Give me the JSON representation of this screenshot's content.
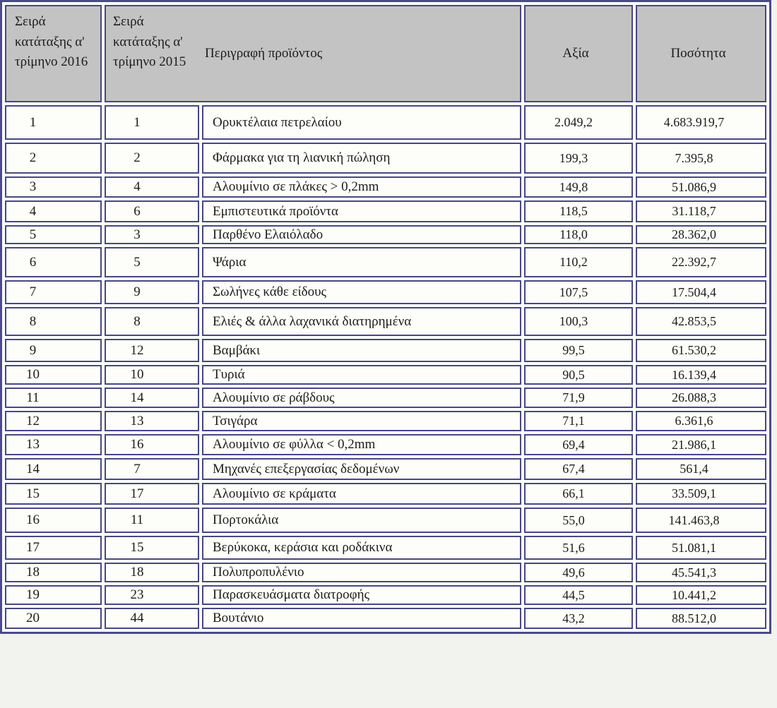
{
  "table": {
    "headers": {
      "rank_2016": "Σειρά κατάταξης α' τρίμηνο 2016",
      "rank_2015": "Σειρά κατάταξης α' τρίμηνο 2015",
      "product": "Περιγραφή προϊόντος",
      "value": "Αξία",
      "quantity": "Ποσότητα"
    },
    "colors": {
      "border": "#474783",
      "header_background": "#c3c3c3",
      "cell_background": "#fdfdf9"
    },
    "rows": [
      {
        "rank_2016": "1",
        "rank_2015": "1",
        "product": "Ορυκτέλαια πετρελαίου",
        "value": "2.049,2",
        "quantity": "4.683.919,7"
      },
      {
        "rank_2016": "2",
        "rank_2015": "2",
        "product": "Φάρμακα για τη λιανική πώληση",
        "value": "199,3",
        "quantity": "7.395,8"
      },
      {
        "rank_2016": "3",
        "rank_2015": "4",
        "product": "Αλουμίνιο σε πλάκες > 0,2mm",
        "value": "149,8",
        "quantity": "51.086,9"
      },
      {
        "rank_2016": "4",
        "rank_2015": "6",
        "product": "Εμπιστευτικά προϊόντα",
        "value": "118,5",
        "quantity": "31.118,7"
      },
      {
        "rank_2016": "5",
        "rank_2015": "3",
        "product": "Παρθένο Ελαιόλαδο",
        "value": "118,0",
        "quantity": "28.362,0"
      },
      {
        "rank_2016": "6",
        "rank_2015": "5",
        "product": "Ψάρια",
        "value": "110,2",
        "quantity": "22.392,7"
      },
      {
        "rank_2016": "7",
        "rank_2015": "9",
        "product": "Σωλήνες κάθε είδους",
        "value": "107,5",
        "quantity": "17.504,4"
      },
      {
        "rank_2016": "8",
        "rank_2015": "8",
        "product": "Ελιές & άλλα λαχανικά διατηρημένα",
        "value": "100,3",
        "quantity": "42.853,5"
      },
      {
        "rank_2016": "9",
        "rank_2015": "12",
        "product": "Βαμβάκι",
        "value": "99,5",
        "quantity": "61.530,2"
      },
      {
        "rank_2016": "10",
        "rank_2015": "10",
        "product": "Τυριά",
        "value": "90,5",
        "quantity": "16.139,4"
      },
      {
        "rank_2016": "11",
        "rank_2015": "14",
        "product": "Αλουμίνιο σε ράβδους",
        "value": "71,9",
        "quantity": "26.088,3"
      },
      {
        "rank_2016": "12",
        "rank_2015": "13",
        "product": "Τσιγάρα",
        "value": "71,1",
        "quantity": "6.361,6"
      },
      {
        "rank_2016": "13",
        "rank_2015": "16",
        "product": "Αλουμίνιο σε φύλλα < 0,2mm",
        "value": "69,4",
        "quantity": "21.986,1"
      },
      {
        "rank_2016": "14",
        "rank_2015": "7",
        "product": "Μηχανές επεξεργασίας δεδομένων",
        "value": "67,4",
        "quantity": "561,4"
      },
      {
        "rank_2016": "15",
        "rank_2015": "17",
        "product": "Αλουμίνιο σε κράματα",
        "value": "66,1",
        "quantity": "33.509,1"
      },
      {
        "rank_2016": "16",
        "rank_2015": "11",
        "product": "Πορτοκάλια",
        "value": "55,0",
        "quantity": "141.463,8"
      },
      {
        "rank_2016": "17",
        "rank_2015": "15",
        "product": "Βερύκοκα, κεράσια και ροδάκινα",
        "value": "51,6",
        "quantity": "51.081,1"
      },
      {
        "rank_2016": "18",
        "rank_2015": "18",
        "product": "Πολυπροπυλένιο",
        "value": "49,6",
        "quantity": "45.541,3"
      },
      {
        "rank_2016": "19",
        "rank_2015": "23",
        "product": "Παρασκευάσματα διατροφής",
        "value": "44,5",
        "quantity": "10.441,2"
      },
      {
        "rank_2016": "20",
        "rank_2015": "44",
        "product": "Βουτάνιο",
        "value": "43,2",
        "quantity": "88.512,0"
      }
    ]
  }
}
